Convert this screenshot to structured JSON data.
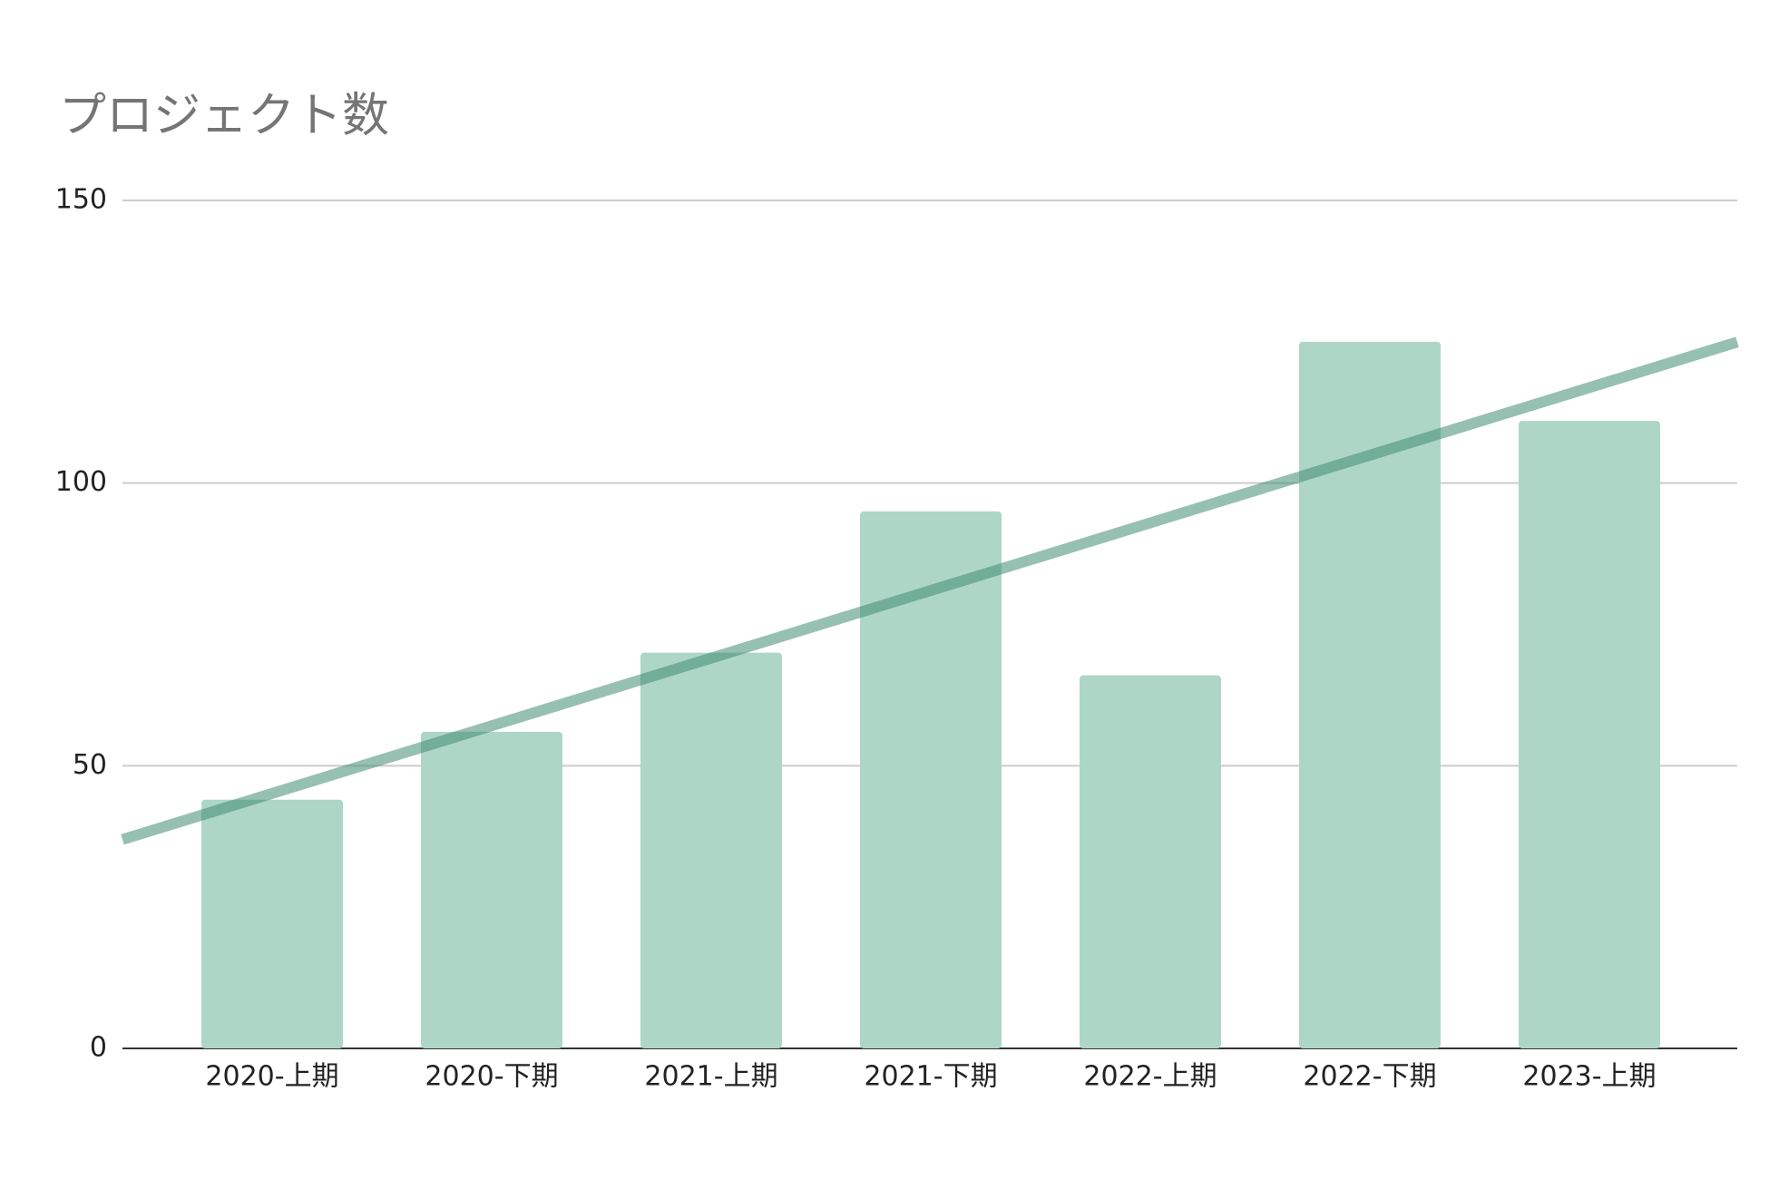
{
  "chart_data": {
    "type": "bar",
    "title": "プロジェクト数",
    "categories": [
      "2020-上期",
      "2020-下期",
      "2021-上期",
      "2021-下期",
      "2022-上期",
      "2022-下期",
      "2023-上期"
    ],
    "values": [
      44,
      56,
      70,
      95,
      66,
      125,
      111
    ],
    "color": "#aed6c7",
    "ylim": [
      0,
      150
    ],
    "yticks": [
      0,
      50,
      100,
      150
    ],
    "grid": true,
    "trendline": {
      "type": "linear",
      "color": "#3f8c72"
    }
  }
}
